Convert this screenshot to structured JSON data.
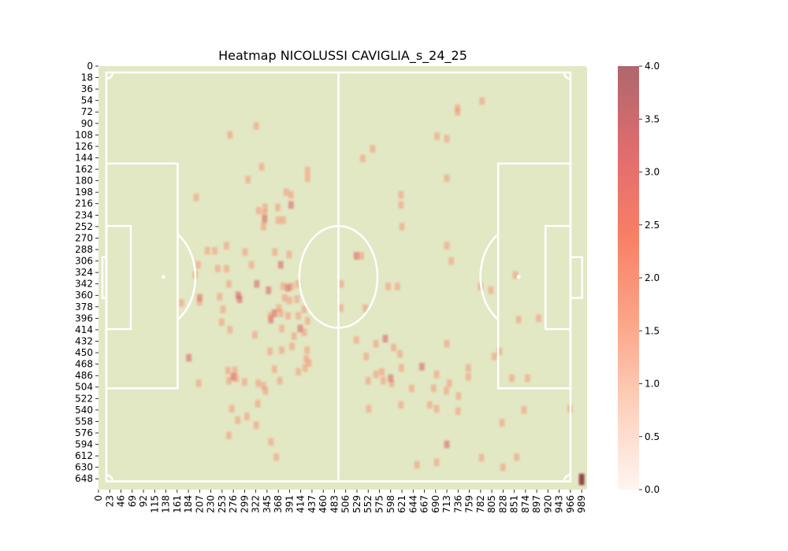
{
  "chart_data": {
    "type": "heatmap",
    "title": "Heatmap NICOLUSSI CAVIGLIA_s_24_25",
    "xlabel": "",
    "ylabel": "",
    "x_ticks": [
      0,
      23,
      46,
      69,
      92,
      115,
      138,
      161,
      184,
      207,
      230,
      253,
      276,
      299,
      322,
      345,
      368,
      391,
      414,
      437,
      460,
      483,
      506,
      529,
      552,
      575,
      598,
      621,
      644,
      667,
      690,
      713,
      736,
      759,
      782,
      805,
      828,
      851,
      874,
      897,
      920,
      943,
      966,
      989
    ],
    "y_ticks": [
      0,
      18,
      36,
      54,
      72,
      90,
      108,
      126,
      144,
      162,
      180,
      198,
      216,
      234,
      252,
      270,
      288,
      306,
      324,
      342,
      360,
      378,
      396,
      414,
      432,
      450,
      468,
      486,
      504,
      522,
      540,
      558,
      576,
      594,
      612,
      630,
      648
    ],
    "xlim": [
      0,
      1000
    ],
    "ylim": [
      0,
      665
    ],
    "colorbar": {
      "min": 0,
      "max": 4,
      "ticks": [
        "0.0",
        "0.5",
        "1.0",
        "1.5",
        "2.0",
        "2.5",
        "3.0",
        "3.5",
        "4.0"
      ],
      "colors": [
        "#fff5f0",
        "#fdd0bc",
        "#fca486",
        "#f87f66",
        "#e06c6e",
        "#ad676e"
      ]
    },
    "pitch": {
      "grass": "#e2e8c4",
      "lines": "#ffffff"
    },
    "cells": [
      [
        735,
        72,
        1
      ],
      [
        735,
        66,
        1
      ],
      [
        785,
        55,
        1
      ],
      [
        323,
        94,
        1
      ],
      [
        269,
        108,
        1
      ],
      [
        693,
        110,
        1
      ],
      [
        713,
        114,
        1
      ],
      [
        561,
        130,
        1
      ],
      [
        541,
        145,
        1
      ],
      [
        428,
        164,
        1
      ],
      [
        428,
        176,
        1
      ],
      [
        306,
        178,
        1
      ],
      [
        334,
        158,
        1
      ],
      [
        713,
        176,
        1
      ],
      [
        619,
        202,
        1
      ],
      [
        619,
        218,
        1
      ],
      [
        384,
        198,
        1
      ],
      [
        394,
        202,
        1
      ],
      [
        394,
        218,
        2
      ],
      [
        200,
        206,
        1
      ],
      [
        341,
        222,
        1
      ],
      [
        328,
        227,
        1
      ],
      [
        367,
        222,
        1
      ],
      [
        340,
        240,
        2
      ],
      [
        340,
        232,
        1
      ],
      [
        368,
        242,
        1
      ],
      [
        378,
        242,
        1
      ],
      [
        338,
        252,
        1
      ],
      [
        621,
        252,
        1
      ],
      [
        262,
        282,
        1
      ],
      [
        713,
        282,
        1
      ],
      [
        300,
        292,
        1
      ],
      [
        223,
        290,
        1
      ],
      [
        238,
        290,
        1
      ],
      [
        361,
        292,
        1
      ],
      [
        390,
        296,
        1
      ],
      [
        538,
        298,
        1
      ],
      [
        528,
        298,
        2
      ],
      [
        722,
        306,
        1
      ],
      [
        204,
        312,
        1
      ],
      [
        313,
        312,
        1
      ],
      [
        373,
        312,
        2
      ],
      [
        244,
        318,
        1
      ],
      [
        262,
        318,
        1
      ],
      [
        198,
        328,
        1
      ],
      [
        853,
        328,
        1
      ],
      [
        267,
        342,
        1
      ],
      [
        324,
        342,
        2
      ],
      [
        348,
        352,
        2
      ],
      [
        378,
        346,
        1
      ],
      [
        395,
        346,
        1
      ],
      [
        408,
        342,
        1
      ],
      [
        388,
        348,
        2
      ],
      [
        497,
        342,
        1
      ],
      [
        593,
        346,
        1
      ],
      [
        612,
        346,
        1
      ],
      [
        782,
        346,
        1
      ],
      [
        803,
        352,
        1
      ],
      [
        248,
        362,
        1
      ],
      [
        286,
        360,
        2
      ],
      [
        289,
        366,
        2
      ],
      [
        381,
        364,
        1
      ],
      [
        391,
        368,
        1
      ],
      [
        406,
        366,
        1
      ],
      [
        207,
        364,
        2
      ],
      [
        207,
        370,
        1
      ],
      [
        170,
        372,
        1
      ],
      [
        496,
        380,
        1
      ],
      [
        546,
        380,
        1
      ],
      [
        421,
        382,
        1
      ],
      [
        255,
        382,
        1
      ],
      [
        369,
        380,
        1
      ],
      [
        360,
        388,
        2
      ],
      [
        373,
        388,
        1
      ],
      [
        388,
        392,
        1
      ],
      [
        409,
        392,
        1
      ],
      [
        252,
        402,
        1
      ],
      [
        353,
        398,
        2
      ],
      [
        352,
        392,
        1
      ],
      [
        428,
        400,
        1
      ],
      [
        375,
        412,
        1
      ],
      [
        413,
        412,
        2
      ],
      [
        421,
        418,
        1
      ],
      [
        860,
        398,
        1
      ],
      [
        901,
        396,
        1
      ],
      [
        269,
        414,
        1
      ],
      [
        320,
        422,
        1
      ],
      [
        400,
        424,
        1
      ],
      [
        528,
        430,
        1
      ],
      [
        587,
        428,
        2
      ],
      [
        568,
        436,
        1
      ],
      [
        604,
        442,
        1
      ],
      [
        375,
        446,
        1
      ],
      [
        351,
        448,
        1
      ],
      [
        396,
        440,
        1
      ],
      [
        427,
        446,
        1
      ],
      [
        548,
        456,
        1
      ],
      [
        617,
        452,
        1
      ],
      [
        713,
        436,
        1
      ],
      [
        821,
        448,
        1
      ],
      [
        810,
        456,
        1
      ],
      [
        425,
        460,
        1
      ],
      [
        185,
        458,
        2
      ],
      [
        431,
        466,
        1
      ],
      [
        423,
        474,
        1
      ],
      [
        620,
        474,
        1
      ],
      [
        662,
        472,
        2
      ],
      [
        757,
        474,
        1
      ],
      [
        265,
        478,
        1
      ],
      [
        279,
        478,
        1
      ],
      [
        276,
        488,
        2
      ],
      [
        360,
        476,
        1
      ],
      [
        409,
        480,
        1
      ],
      [
        568,
        484,
        1
      ],
      [
        580,
        480,
        1
      ],
      [
        598,
        490,
        2
      ],
      [
        583,
        494,
        1
      ],
      [
        600,
        498,
        1
      ],
      [
        692,
        484,
        1
      ],
      [
        757,
        488,
        1
      ],
      [
        846,
        490,
        1
      ],
      [
        878,
        490,
        1
      ],
      [
        282,
        490,
        1
      ],
      [
        267,
        494,
        1
      ],
      [
        299,
        496,
        1
      ],
      [
        327,
        498,
        1
      ],
      [
        371,
        494,
        1
      ],
      [
        552,
        494,
        1
      ],
      [
        205,
        498,
        1
      ],
      [
        641,
        506,
        1
      ],
      [
        686,
        506,
        1
      ],
      [
        718,
        498,
        1
      ],
      [
        712,
        510,
        1
      ],
      [
        338,
        502,
        1
      ],
      [
        342,
        510,
        1
      ],
      [
        737,
        518,
        1
      ],
      [
        326,
        530,
        1
      ],
      [
        619,
        532,
        1
      ],
      [
        678,
        532,
        1
      ],
      [
        273,
        538,
        1
      ],
      [
        553,
        538,
        1
      ],
      [
        692,
        538,
        1
      ],
      [
        871,
        540,
        1
      ],
      [
        965,
        538,
        1
      ],
      [
        304,
        550,
        1
      ],
      [
        285,
        556,
        1
      ],
      [
        736,
        542,
        1
      ],
      [
        323,
        564,
        1
      ],
      [
        826,
        560,
        1
      ],
      [
        267,
        580,
        1
      ],
      [
        353,
        590,
        1
      ],
      [
        713,
        594,
        2
      ],
      [
        364,
        614,
        1
      ],
      [
        784,
        615,
        1
      ],
      [
        856,
        614,
        1
      ],
      [
        652,
        626,
        1
      ],
      [
        692,
        622,
        1
      ],
      [
        828,
        630,
        1
      ],
      [
        989,
        652,
        4
      ],
      [
        989,
        646,
        4
      ]
    ]
  }
}
